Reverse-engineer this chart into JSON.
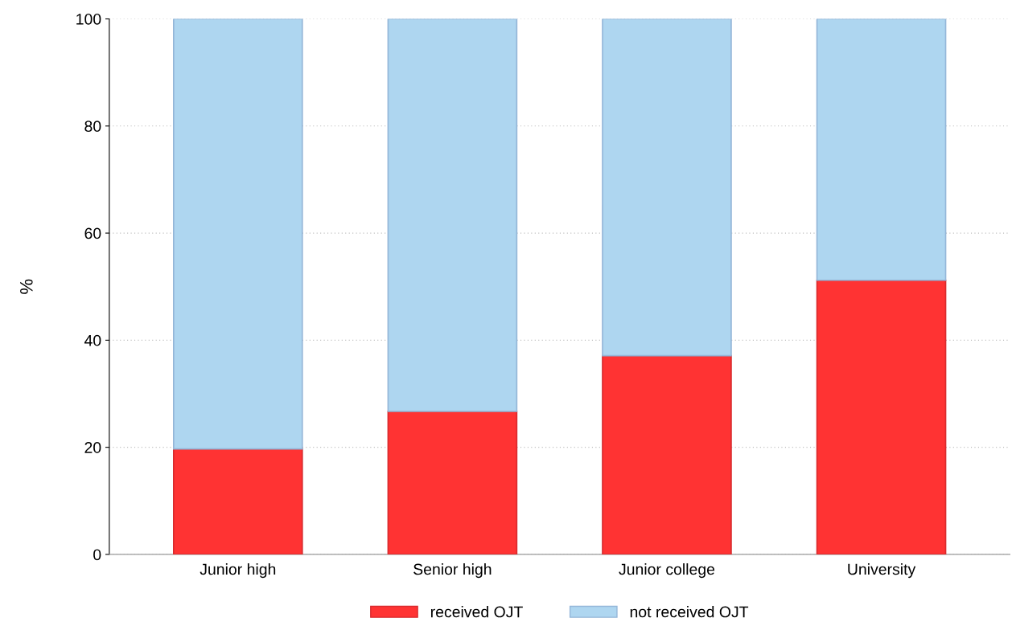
{
  "chart_data": {
    "type": "bar",
    "stacked": true,
    "ylabel": "%",
    "categories": [
      "Junior high",
      "Senior high",
      "Junior college",
      "University"
    ],
    "series": [
      {
        "name": "received OJT",
        "color": "#ff3333",
        "values": [
          19.7,
          26.7,
          37.1,
          51.2
        ]
      },
      {
        "name": "not received OJT",
        "color": "#aed6f0",
        "values": [
          80.3,
          73.3,
          62.9,
          48.8
        ]
      }
    ],
    "ylim": [
      0,
      100
    ],
    "yticks": [
      0,
      20,
      40,
      60,
      80,
      100
    ],
    "grid": "y",
    "legend": "bottom"
  }
}
